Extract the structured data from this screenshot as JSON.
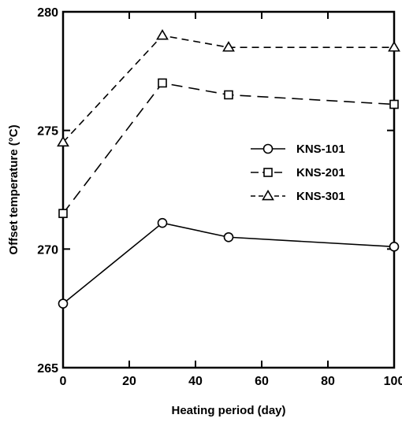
{
  "chart_data": {
    "type": "line",
    "title": "",
    "xlabel": "Heating period (day)",
    "ylabel": "Offset temperature (°C)",
    "xlim": [
      0,
      100
    ],
    "ylim": [
      265,
      280
    ],
    "xticks": [
      0,
      20,
      40,
      60,
      80,
      100
    ],
    "yticks": [
      265,
      270,
      275,
      280
    ],
    "grid": false,
    "legend_position": "right-middle",
    "series": [
      {
        "name": "KNS-101",
        "marker": "circle",
        "line_style": "solid",
        "x": [
          0,
          30,
          50,
          100
        ],
        "y": [
          267.7,
          271.1,
          270.5,
          270.1
        ]
      },
      {
        "name": "KNS-201",
        "marker": "square",
        "line_style": "long-dash",
        "x": [
          0,
          30,
          50,
          100
        ],
        "y": [
          271.5,
          277.0,
          276.5,
          276.1
        ]
      },
      {
        "name": "KNS-301",
        "marker": "triangle",
        "line_style": "dash",
        "x": [
          0,
          30,
          50,
          100
        ],
        "y": [
          274.5,
          279.0,
          278.5,
          278.5
        ]
      }
    ]
  }
}
